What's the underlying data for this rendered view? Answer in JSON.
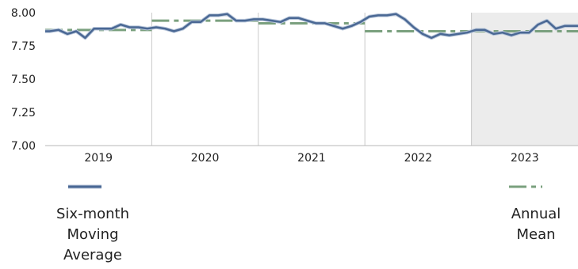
{
  "chart_data": {
    "type": "line",
    "ylim": [
      7.0,
      8.0
    ],
    "y_ticks": [
      "7.00",
      "7.25",
      "7.50",
      "7.75",
      "8.00"
    ],
    "x_ticks": [
      "2019",
      "2020",
      "2021",
      "2022",
      "2023"
    ],
    "grid": "vertical year separators",
    "shaded_period": "2023",
    "legend_placement": "bottom",
    "series": [
      {
        "key": "moving_avg",
        "legend_lines": [
          "Six-month",
          "Moving",
          "Average"
        ],
        "style": "solid",
        "color": "#4a6894",
        "x": [
          "2019-01",
          "2019-02",
          "2019-03",
          "2019-04",
          "2019-05",
          "2019-06",
          "2019-07",
          "2019-08",
          "2019-09",
          "2019-10",
          "2019-11",
          "2019-12",
          "2020-01",
          "2020-02",
          "2020-03",
          "2020-04",
          "2020-05",
          "2020-06",
          "2020-07",
          "2020-08",
          "2020-09",
          "2020-10",
          "2020-11",
          "2020-12",
          "2021-01",
          "2021-02",
          "2021-03",
          "2021-04",
          "2021-05",
          "2021-06",
          "2021-07",
          "2021-08",
          "2021-09",
          "2021-10",
          "2021-11",
          "2021-12",
          "2022-01",
          "2022-02",
          "2022-03",
          "2022-04",
          "2022-05",
          "2022-06",
          "2022-07",
          "2022-08",
          "2022-09",
          "2022-10",
          "2022-11",
          "2022-12",
          "2023-01",
          "2023-02",
          "2023-03",
          "2023-04",
          "2023-05",
          "2023-06",
          "2023-07",
          "2023-08",
          "2023-09",
          "2023-10",
          "2023-11",
          "2023-12"
        ],
        "values": [
          7.86,
          7.87,
          7.84,
          7.86,
          7.81,
          7.88,
          7.88,
          7.88,
          7.91,
          7.89,
          7.89,
          7.88,
          7.89,
          7.88,
          7.86,
          7.88,
          7.93,
          7.93,
          7.98,
          7.98,
          7.99,
          7.94,
          7.94,
          7.95,
          7.95,
          7.94,
          7.93,
          7.96,
          7.96,
          7.94,
          7.92,
          7.92,
          7.9,
          7.88,
          7.9,
          7.93,
          7.97,
          7.98,
          7.98,
          7.99,
          7.95,
          7.89,
          7.84,
          7.81,
          7.84,
          7.83,
          7.84,
          7.85,
          7.87,
          7.87,
          7.84,
          7.85,
          7.83,
          7.85,
          7.85,
          7.91,
          7.94,
          7.88,
          7.9,
          7.9
        ]
      },
      {
        "key": "annual_mean",
        "legend_lines": [
          "Annual",
          "Mean"
        ],
        "style": "dash-dot",
        "color": "#7aa07e",
        "years": [
          "2019",
          "2020",
          "2021",
          "2022",
          "2023"
        ],
        "values": [
          7.87,
          7.94,
          7.92,
          7.86,
          7.86
        ]
      }
    ]
  }
}
